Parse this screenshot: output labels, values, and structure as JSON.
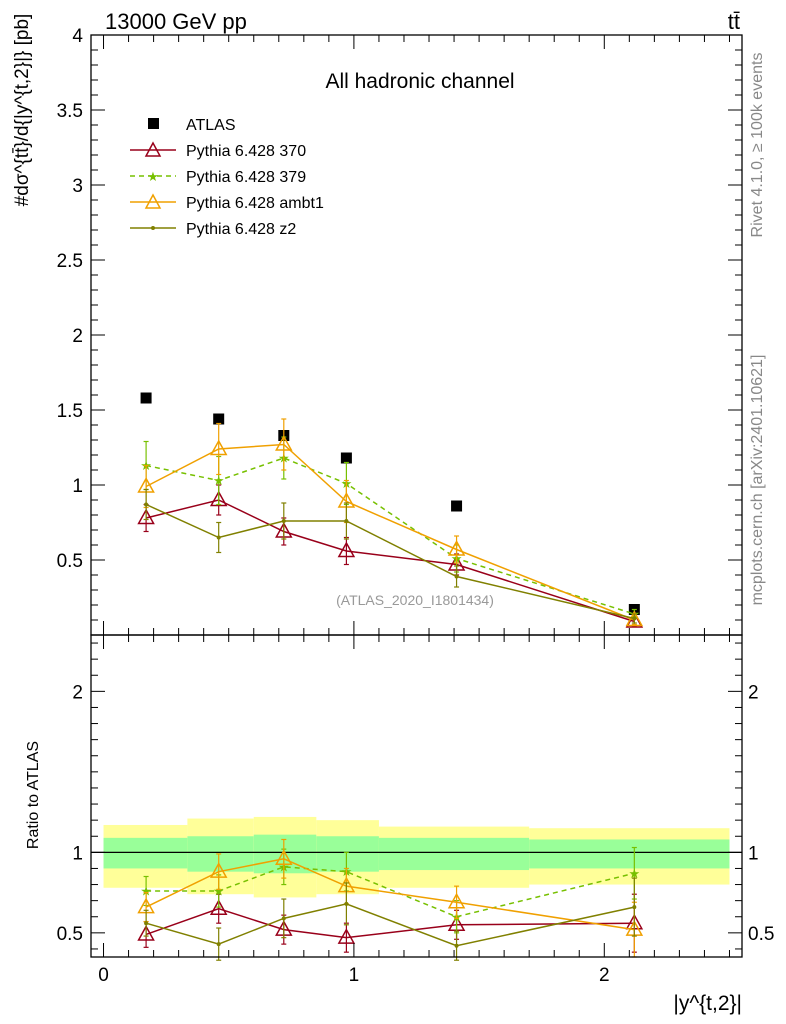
{
  "header": {
    "energy_label": "13000 GeV pp",
    "process_label": "tt̄"
  },
  "side_labels": {
    "rivet": "Rivet 4.1.0, ≥ 100k events",
    "source": "mcplots.cern.ch [arXiv:2401.10621]"
  },
  "chart_data": [
    {
      "panel": "main",
      "type": "scatter",
      "title": "All hadronic channel",
      "analysis_tag": "(ATLAS_2020_I1801434)",
      "ylabel": "#dσ^{tt̄}/d{|y^{t,2}|} [pb]",
      "xlim": [
        -0.05,
        2.55
      ],
      "ylim": [
        0,
        4
      ],
      "yticks": [
        0.5,
        1,
        1.5,
        2,
        2.5,
        3,
        3.5,
        4
      ],
      "ytick_labels": [
        "0.5",
        "1",
        "1.5",
        "2",
        "2.5",
        "3",
        "3.5",
        "4"
      ],
      "x": [
        0.17,
        0.46,
        0.72,
        0.97,
        1.41,
        2.12
      ],
      "series": [
        {
          "name": "ATLAS",
          "color": "#000000",
          "marker": "square",
          "line": "none",
          "values": [
            1.58,
            1.44,
            1.33,
            1.18,
            0.86,
            0.17
          ]
        },
        {
          "name": "Pythia 6.428 370",
          "color": "#99001a",
          "marker": "open-triangle",
          "line": "solid",
          "values": [
            0.78,
            0.9,
            0.69,
            0.56,
            0.47,
            0.09
          ],
          "errors": [
            0.09,
            0.1,
            0.09,
            0.09,
            0.07,
            0.03
          ]
        },
        {
          "name": "Pythia 6.428 379",
          "color": "#77c000",
          "marker": "star",
          "line": "dashed",
          "values": [
            1.13,
            1.03,
            1.18,
            1.01,
            0.51,
            0.14
          ],
          "errors": [
            0.16,
            0.16,
            0.14,
            0.14,
            0.09,
            0.03
          ]
        },
        {
          "name": "Pythia 6.428 ambt1",
          "color": "#f0a000",
          "marker": "open-triangle",
          "line": "solid",
          "values": [
            0.99,
            1.24,
            1.27,
            0.89,
            0.57,
            0.1
          ],
          "errors": [
            0.14,
            0.17,
            0.17,
            0.14,
            0.09,
            0.03
          ]
        },
        {
          "name": "Pythia 6.428 z2",
          "color": "#808000",
          "marker": "dot",
          "line": "solid",
          "values": [
            0.87,
            0.65,
            0.76,
            0.76,
            0.39,
            0.11
          ],
          "errors": [
            0.1,
            0.1,
            0.12,
            0.12,
            0.07,
            0.03
          ]
        }
      ]
    },
    {
      "panel": "ratio",
      "type": "line",
      "ylabel": "Ratio to ATLAS",
      "xlabel": "|y^{t,2}|",
      "xlim": [
        -0.05,
        2.55
      ],
      "ylim": [
        0.35,
        2.35
      ],
      "xticks": [
        0,
        1,
        2
      ],
      "xtick_labels": [
        "0",
        "1",
        "2"
      ],
      "yticks": [
        0.5,
        1,
        2
      ],
      "ytick_labels": [
        "0.5",
        "1",
        "2"
      ],
      "bin_edges": [
        0.0,
        0.335,
        0.6,
        0.85,
        1.1,
        1.7,
        2.5
      ],
      "band_inner": {
        "color": "#99ff99",
        "low": [
          0.9,
          0.88,
          0.87,
          0.88,
          0.89,
          0.9
        ],
        "high": [
          1.09,
          1.1,
          1.11,
          1.1,
          1.09,
          1.08
        ]
      },
      "band_outer": {
        "color": "#ffff99",
        "low": [
          0.78,
          0.74,
          0.72,
          0.74,
          0.78,
          0.8
        ],
        "high": [
          1.17,
          1.21,
          1.22,
          1.2,
          1.16,
          1.15
        ]
      },
      "x": [
        0.17,
        0.46,
        0.72,
        0.97,
        1.41,
        2.12
      ],
      "series": [
        {
          "name": "Pythia 6.428 370",
          "color": "#99001a",
          "marker": "open-triangle",
          "line": "solid",
          "values": [
            0.49,
            0.65,
            0.52,
            0.47,
            0.55,
            0.56
          ],
          "errors": [
            0.08,
            0.09,
            0.09,
            0.09,
            0.09,
            0.18
          ]
        },
        {
          "name": "Pythia 6.428 379",
          "color": "#77c000",
          "marker": "star",
          "line": "dashed",
          "values": [
            0.76,
            0.76,
            0.91,
            0.88,
            0.6,
            0.87
          ],
          "errors": [
            0.09,
            0.1,
            0.11,
            0.12,
            0.1,
            0.16
          ]
        },
        {
          "name": "Pythia 6.428 ambt1",
          "color": "#f0a000",
          "marker": "open-triangle",
          "line": "solid",
          "values": [
            0.66,
            0.88,
            0.96,
            0.79,
            0.69,
            0.52
          ],
          "errors": [
            0.09,
            0.11,
            0.12,
            0.11,
            0.1,
            0.17
          ]
        },
        {
          "name": "Pythia 6.428 z2",
          "color": "#808000",
          "marker": "dot",
          "line": "solid",
          "values": [
            0.56,
            0.43,
            0.59,
            0.68,
            0.42,
            0.66
          ],
          "errors": [
            0.08,
            0.1,
            0.12,
            0.13,
            0.09,
            0.18
          ]
        }
      ]
    }
  ]
}
